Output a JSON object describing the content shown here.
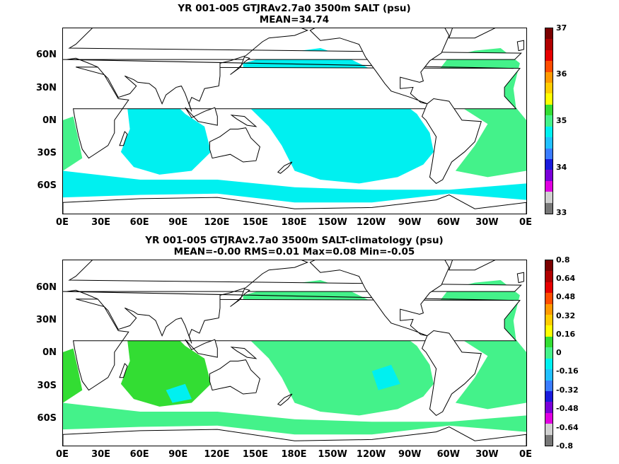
{
  "panels": [
    {
      "title_line1": "YR 001-005 GTJRAv2.7a0 3500m SALT (psu)",
      "title_line2": "MEAN=34.74",
      "field_type": "absolute-salinity",
      "colorbar": {
        "labels": [
          "37",
          "36",
          "35",
          "34",
          "33"
        ],
        "colors": [
          "#7a0000",
          "#b00000",
          "#e60000",
          "#ff4c00",
          "#ff9900",
          "#ffcc00",
          "#ffff00",
          "#33dd33",
          "#44f28a",
          "#00f0f0",
          "#22c0ff",
          "#3a7cff",
          "#1a1adc",
          "#7a00d8",
          "#e000e0",
          "#d0d0d0",
          "#777777"
        ]
      },
      "lat_labels": [
        "60N",
        "30N",
        "0N",
        "30S",
        "60S"
      ],
      "lon_labels": [
        "0E",
        "30E",
        "60E",
        "90E",
        "120E",
        "150E",
        "180E",
        "150W",
        "120W",
        "90W",
        "60W",
        "30W",
        "0E"
      ]
    },
    {
      "title_line1": "YR 001-005 GTJRAv2.7a0 3500m SALT-climatology (psu)",
      "title_line2": "MEAN=-0.00   RMS=0.01   Max=0.08   Min=-0.05",
      "field_type": "anomaly",
      "colorbar": {
        "labels": [
          "0.8",
          "0.64",
          "0.48",
          "0.32",
          "0.16",
          "0",
          "-0.16",
          "-0.32",
          "-0.48",
          "-0.64",
          "-0.8"
        ],
        "colors": [
          "#7a0000",
          "#b00000",
          "#e60000",
          "#ff4c00",
          "#ff9900",
          "#ffcc00",
          "#ffff00",
          "#33dd33",
          "#44f28a",
          "#00f0f0",
          "#22c0ff",
          "#3a7cff",
          "#1a1adc",
          "#7a00d8",
          "#e000e0",
          "#d0d0d0",
          "#777777"
        ]
      },
      "lat_labels": [
        "60N",
        "30N",
        "0N",
        "30S",
        "60S"
      ],
      "lon_labels": [
        "0E",
        "30E",
        "60E",
        "90E",
        "120E",
        "150E",
        "180E",
        "150W",
        "120W",
        "90W",
        "60W",
        "30W",
        "0E"
      ]
    }
  ]
}
